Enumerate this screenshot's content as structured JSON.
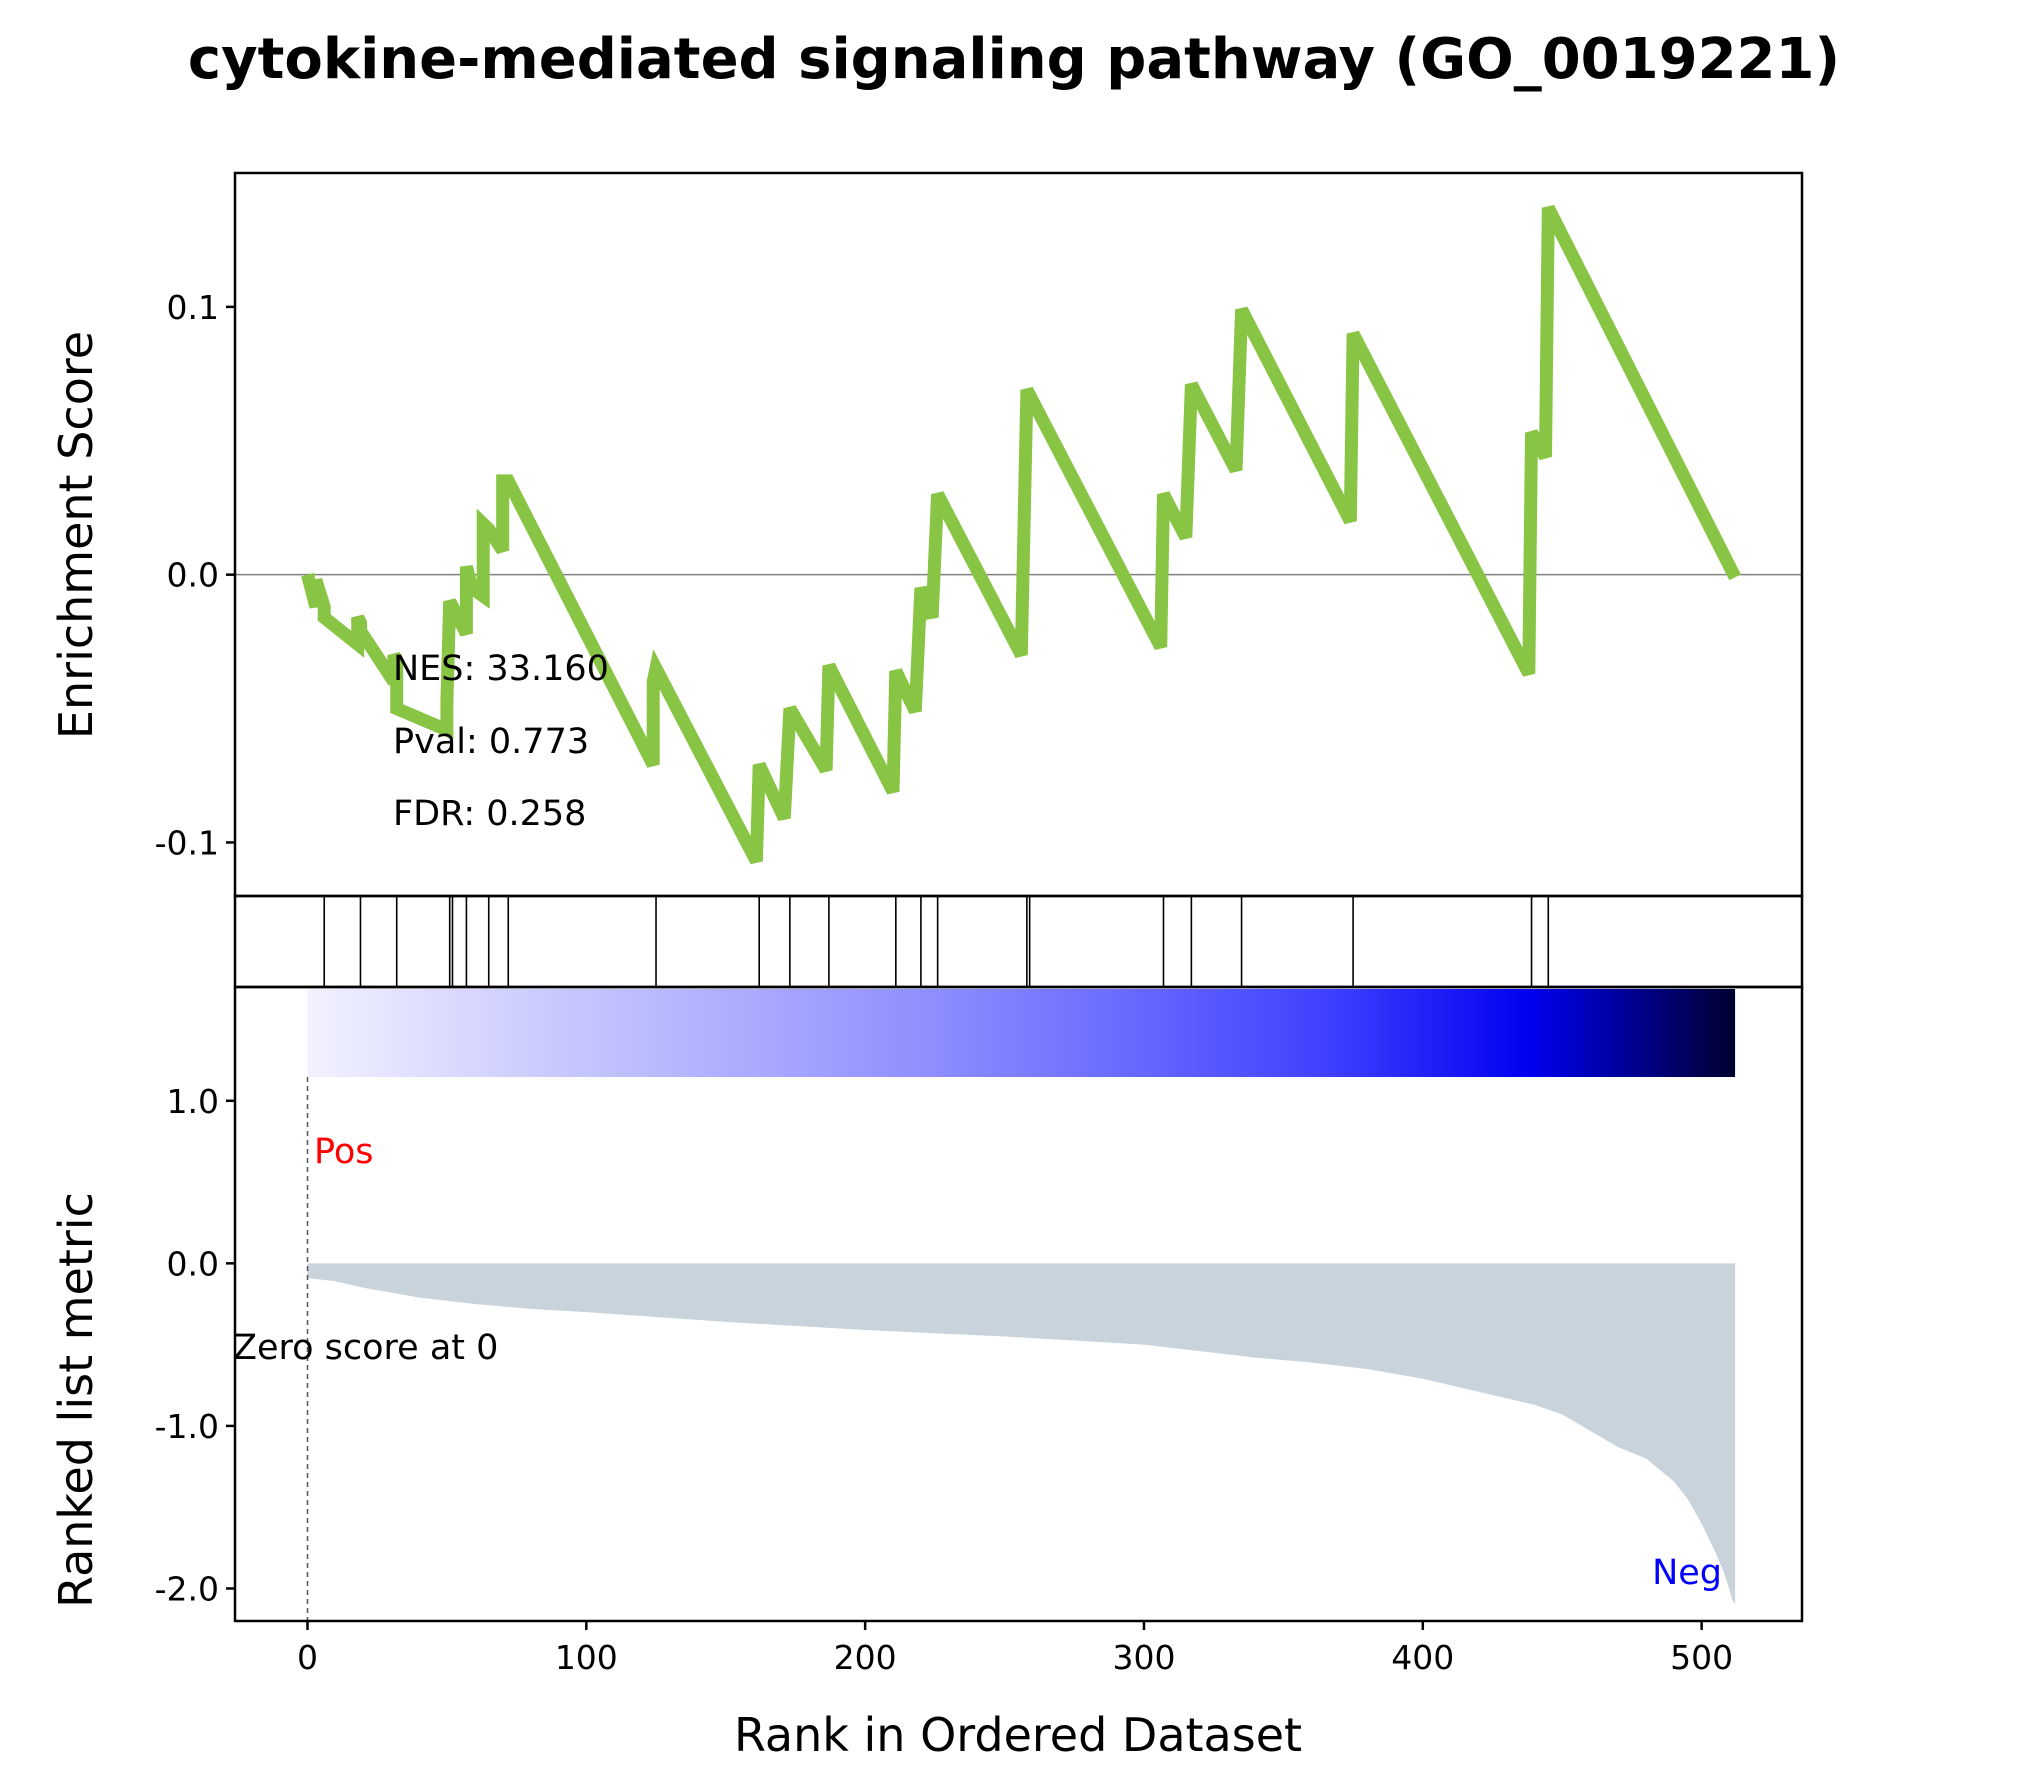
{
  "chart_data": {
    "type": "line",
    "title": "cytokine-mediated signaling pathway (GO_0019221)",
    "xlabel": "Rank in Ordered Dataset",
    "x_ticks": [
      0,
      100,
      200,
      300,
      400,
      500
    ],
    "x_tick_labels": [
      "0",
      "100",
      "200",
      "300",
      "400",
      "500"
    ],
    "xlim": [
      -26,
      536
    ],
    "colors": {
      "es_line": "#88c544",
      "zero_line": "#808080",
      "frame": "#000000",
      "metric_fill": "#c8d3dc",
      "pos_label": "#ff0000",
      "neg_label": "#0000ff"
    },
    "es_panel": {
      "ylabel": "Enrichment Score",
      "ylim": [
        -0.12,
        0.15
      ],
      "y_ticks": [
        -0.1,
        0.0,
        0.1
      ],
      "y_tick_labels": [
        "-0.1",
        "0.0",
        "0.1"
      ],
      "series": [
        {
          "x": [
            0,
            3,
            3,
            6,
            6,
            18,
            18,
            19,
            19,
            31,
            31,
            32,
            32,
            50,
            50,
            51,
            51,
            57,
            57,
            59,
            59,
            63,
            63,
            65,
            65,
            70,
            70,
            72,
            72,
            124,
            124,
            125,
            125,
            161,
            161,
            162,
            162,
            171,
            171,
            173,
            173,
            186,
            186,
            187,
            187,
            210,
            210,
            211,
            211,
            218,
            218,
            220,
            220,
            224,
            224,
            226,
            226,
            256,
            256,
            258,
            258,
            306,
            306,
            307,
            307,
            315,
            315,
            317,
            317,
            333,
            333,
            335,
            335,
            374,
            374,
            375,
            375,
            438,
            438,
            439,
            439,
            444,
            444,
            445,
            512
          ],
          "y": [
            0.0,
            -0.012,
            -0.002,
            -0.012,
            -0.016,
            -0.026,
            -0.016,
            -0.018,
            -0.021,
            -0.04,
            -0.03,
            -0.032,
            -0.05,
            -0.058,
            -0.047,
            -0.01,
            -0.01,
            -0.022,
            0.003,
            -0.005,
            -0.005,
            -0.008,
            0.019,
            0.017,
            0.017,
            0.009,
            0.035,
            0.035,
            0.035,
            -0.071,
            -0.04,
            -0.035,
            -0.035,
            -0.107,
            -0.107,
            -0.071,
            -0.071,
            -0.091,
            -0.091,
            -0.05,
            -0.05,
            -0.073,
            -0.073,
            -0.034,
            -0.034,
            -0.081,
            -0.081,
            -0.036,
            -0.036,
            -0.051,
            -0.051,
            -0.005,
            -0.005,
            -0.016,
            -0.016,
            0.03,
            0.03,
            -0.03,
            -0.03,
            0.069,
            0.069,
            -0.027,
            -0.027,
            0.03,
            0.03,
            0.014,
            0.014,
            0.071,
            0.071,
            0.039,
            0.039,
            0.099,
            0.099,
            0.02,
            0.02,
            0.09,
            0.09,
            -0.037,
            -0.037,
            0.053,
            0.053,
            0.044,
            0.044,
            0.137,
            -0.001
          ]
        }
      ],
      "annotations": {
        "nes": "NES: 33.160",
        "pval": "Pval: 0.773",
        "fdr": "FDR: 0.258"
      }
    },
    "hits_panel": {
      "hit_ranks": [
        6,
        19,
        32,
        51,
        52,
        57,
        65,
        72,
        125,
        162,
        173,
        187,
        211,
        220,
        226,
        258,
        259,
        307,
        317,
        335,
        375,
        439,
        445
      ]
    },
    "rank_panel": {
      "ylabel": "Ranked list metric",
      "ylim": [
        -2.2,
        1.7
      ],
      "y_ticks": [
        -2.0,
        -1.0,
        0.0,
        1.0
      ],
      "y_tick_labels": [
        "-2.0",
        "-1.0",
        "0.0",
        "1.0"
      ],
      "pos_label": "Pos",
      "neg_label": "Neg",
      "zero_label": "Zero score at 0",
      "metric": {
        "x": [
          0,
          10,
          20,
          30,
          40,
          60,
          80,
          100,
          150,
          200,
          250,
          300,
          340,
          360,
          380,
          400,
          420,
          440,
          450,
          460,
          470,
          480,
          490,
          495,
          500,
          505,
          508,
          510,
          511,
          512
        ],
        "y": [
          -0.09,
          -0.11,
          -0.15,
          -0.18,
          -0.21,
          -0.25,
          -0.28,
          -0.3,
          -0.36,
          -0.41,
          -0.45,
          -0.5,
          -0.58,
          -0.61,
          -0.65,
          -0.71,
          -0.79,
          -0.87,
          -0.93,
          -1.03,
          -1.13,
          -1.2,
          -1.34,
          -1.45,
          -1.6,
          -1.78,
          -1.9,
          -2.01,
          -2.07,
          -2.1
        ]
      },
      "color_bar": {
        "gradient_stops": [
          "#f2f2ff",
          "#d0d0ff",
          "#b0b0ff",
          "#9090ff",
          "#6a6aff",
          "#4040ff",
          "#0000f0",
          "#000030"
        ]
      }
    }
  }
}
